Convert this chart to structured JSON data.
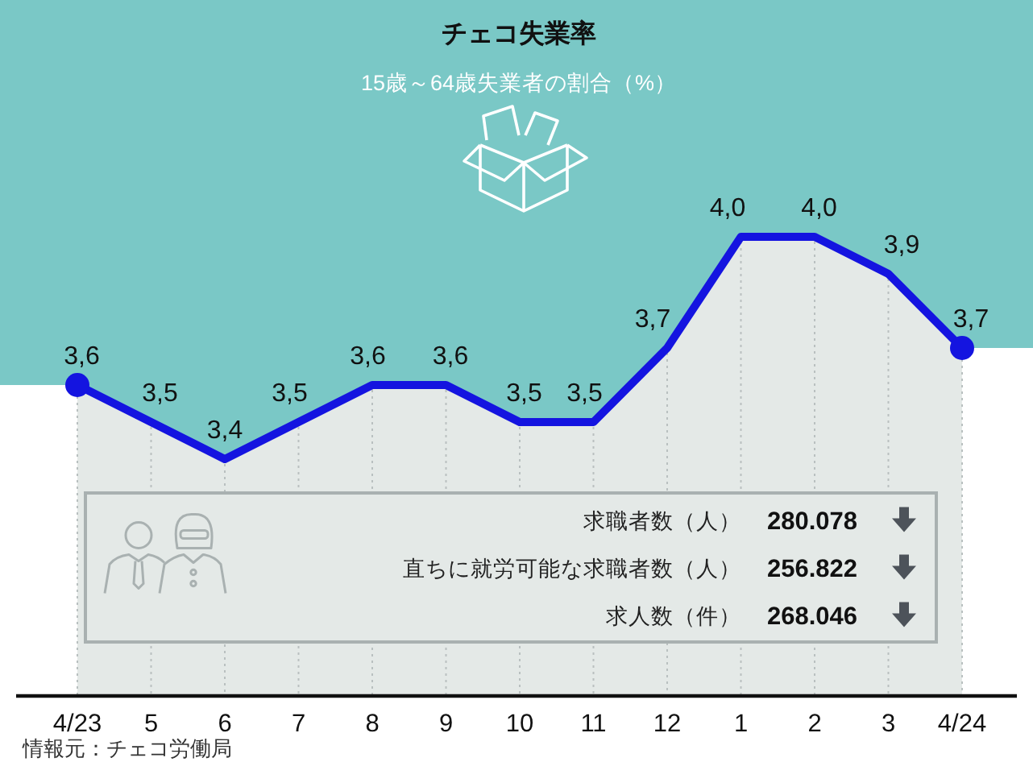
{
  "chart_data": {
    "type": "line",
    "title": "チェコ失業率",
    "subtitle": "15歳～64歳失業者の割合（%）",
    "categories": [
      "4/23",
      "5",
      "6",
      "7",
      "8",
      "9",
      "10",
      "11",
      "12",
      "1",
      "2",
      "3",
      "4/24"
    ],
    "series": [
      {
        "color": "#1414e0",
        "values": [
          3.6,
          3.5,
          3.4,
          3.5,
          3.6,
          3.6,
          3.5,
          3.5,
          3.7,
          4.0,
          4.0,
          3.9,
          3.7
        ],
        "value_labels": [
          "3,6",
          "3,5",
          "3,4",
          "3,5",
          "3,6",
          "3,6",
          "3,5",
          "3,5",
          "3,7",
          "4,0",
          "4,0",
          "3,9",
          "3,7"
        ]
      },
      {
        "type": "scatter",
        "color": "#1414e0",
        "x": [
          "4/23",
          "4/24"
        ],
        "values": [
          3.6,
          3.7
        ]
      }
    ],
    "line_style": "solid",
    "grid": "x",
    "tick_labels": "x",
    "annotations": [
      "求職者数（人）",
      "280.078",
      "直ちに就労可能な求職者数（人）",
      "256.822",
      "求人数（件）",
      "268.046",
      "情報元：チェコ労働局"
    ]
  }
}
